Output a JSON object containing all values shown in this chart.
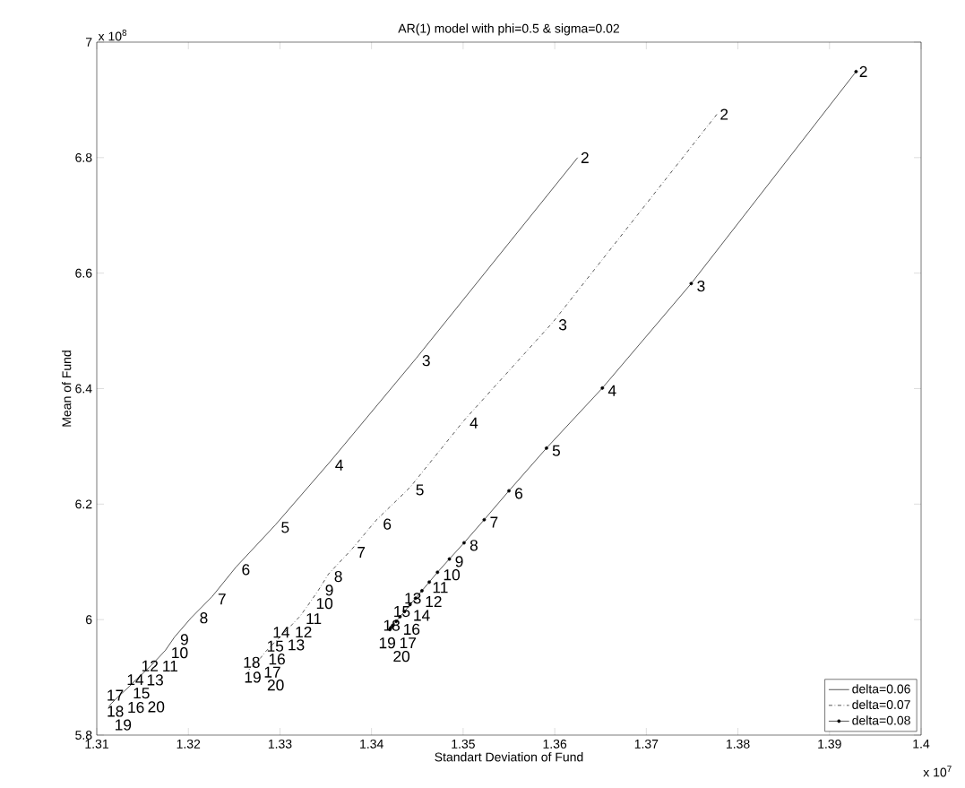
{
  "chart_data": {
    "type": "line",
    "title": "AR(1) model with phi=0.5 & sigma=0.02",
    "xlabel": "Standart Deviation of Fund",
    "ylabel": "Mean of Fund",
    "xlim": [
      1.31,
      1.4
    ],
    "xticks": [
      1.31,
      1.32,
      1.33,
      1.34,
      1.35,
      1.36,
      1.37,
      1.38,
      1.39,
      1.4
    ],
    "ylim": [
      5.8,
      7
    ],
    "yticks": [
      5.8,
      6,
      6.2,
      6.4,
      6.6,
      6.8,
      7
    ],
    "legend": "bottom right",
    "grid": false,
    "series": [
      {
        "name": "delta=0.06",
        "color": "#000000",
        "line_style": "solid",
        "marker": "none",
        "x": [
          1.3625,
          1.3449,
          1.3354,
          1.3295,
          1.3252,
          1.3226,
          1.3203,
          1.3185,
          1.3175,
          1.3168,
          1.3159,
          1.3151,
          1.3143,
          1.3136,
          1.313,
          1.3125,
          1.312,
          1.3116,
          1.3113
        ],
        "values": [
          6.8,
          6.453,
          6.272,
          6.164,
          6.091,
          6.04,
          6.003,
          5.97,
          5.947,
          5.935,
          5.92,
          5.908,
          5.896,
          5.885,
          5.876,
          5.869,
          5.861,
          5.855,
          5.849
        ]
      },
      {
        "name": "delta=0.07",
        "color": "#000000",
        "line_style": "dash-dot",
        "marker": "none",
        "x": [
          1.3777,
          1.3598,
          1.3501,
          1.3442,
          1.3405,
          1.3378,
          1.3353,
          1.3342,
          1.3332,
          1.3322,
          1.3313,
          1.3305,
          1.3297,
          1.329,
          1.3284,
          1.3279,
          1.3274,
          1.327,
          1.3266
        ],
        "values": [
          6.875,
          6.515,
          6.345,
          6.229,
          6.172,
          6.121,
          6.079,
          6.051,
          6.028,
          6.006,
          5.991,
          5.978,
          5.965,
          5.954,
          5.944,
          5.934,
          5.926,
          5.92,
          5.913
        ]
      },
      {
        "name": "delta=0.08",
        "color": "#000000",
        "line_style": "solid",
        "marker": "circle",
        "x": [
          1.3929,
          1.3749,
          1.3652,
          1.3591,
          1.355,
          1.3523,
          1.3501,
          1.3485,
          1.3472,
          1.3463,
          1.3455,
          1.3448,
          1.3442,
          1.3436,
          1.3431,
          1.3427,
          1.3423,
          1.3421,
          1.342
        ],
        "values": [
          6.949,
          6.582,
          6.401,
          6.297,
          6.223,
          6.173,
          6.133,
          6.105,
          6.082,
          6.065,
          6.05,
          6.037,
          6.026,
          6.014,
          6.005,
          5.997,
          5.99,
          5.986,
          5.983
        ]
      }
    ],
    "annotations": [
      "x 10$^{8}$",
      "x 10$^{7}$",
      {
        "text": "2",
        "x": 1.3625,
        "y": 6.8
      },
      {
        "text": "3",
        "x": 1.3449,
        "y": 6.453
      },
      {
        "text": "4",
        "x": 1.3354,
        "y": 6.272
      },
      {
        "text": "5",
        "x": 1.3295,
        "y": 6.164
      },
      {
        "text": "6",
        "x": 1.3252,
        "y": 6.091
      },
      {
        "text": "7",
        "x": 1.3226,
        "y": 6.04
      },
      {
        "text": "8",
        "x": 1.3203,
        "y": 6.003
      },
      {
        "text": "9",
        "x": 1.3185,
        "y": 5.97
      },
      {
        "text": "10",
        "x": 1.3175,
        "y": 5.947
      },
      {
        "text": "11",
        "x": 1.3168,
        "y": 5.935
      },
      {
        "text": "12",
        "x": 1.3159,
        "y": 5.92
      },
      {
        "text": "13",
        "x": 1.3151,
        "y": 5.908
      },
      {
        "text": "14",
        "x": 1.3143,
        "y": 5.896
      },
      {
        "text": "15",
        "x": 1.3136,
        "y": 5.885
      },
      {
        "text": "16",
        "x": 1.313,
        "y": 5.876
      },
      {
        "text": "17",
        "x": 1.3125,
        "y": 5.869
      },
      {
        "text": "18",
        "x": 1.312,
        "y": 5.861
      },
      {
        "text": "19",
        "x": 1.3116,
        "y": 5.855
      },
      {
        "text": "20",
        "x": 1.3113,
        "y": 5.849
      },
      {
        "text": "2",
        "x": 1.3777,
        "y": 6.875
      },
      {
        "text": "3",
        "x": 1.3598,
        "y": 6.515
      },
      {
        "text": "4",
        "x": 1.3501,
        "y": 6.345
      },
      {
        "text": "5",
        "x": 1.3442,
        "y": 6.229
      },
      {
        "text": "6",
        "x": 1.3405,
        "y": 6.172
      },
      {
        "text": "7",
        "x": 1.3378,
        "y": 6.121
      },
      {
        "text": "8",
        "x": 1.3353,
        "y": 6.079
      },
      {
        "text": "9",
        "x": 1.3342,
        "y": 6.051
      },
      {
        "text": "10",
        "x": 1.3332,
        "y": 6.028
      },
      {
        "text": "11",
        "x": 1.3322,
        "y": 6.006
      },
      {
        "text": "12",
        "x": 1.3313,
        "y": 5.991
      },
      {
        "text": "13",
        "x": 1.3305,
        "y": 5.978
      },
      {
        "text": "14",
        "x": 1.3297,
        "y": 5.965
      },
      {
        "text": "15",
        "x": 1.329,
        "y": 5.954
      },
      {
        "text": "16",
        "x": 1.3284,
        "y": 5.944
      },
      {
        "text": "17",
        "x": 1.3279,
        "y": 5.934
      },
      {
        "text": "18",
        "x": 1.3274,
        "y": 5.926
      },
      {
        "text": "19",
        "x": 1.327,
        "y": 5.92
      },
      {
        "text": "20",
        "x": 1.3266,
        "y": 5.913
      },
      {
        "text": "2",
        "x": 1.3929,
        "y": 6.949
      },
      {
        "text": "3",
        "x": 1.3749,
        "y": 6.582
      },
      {
        "text": "4",
        "x": 1.3652,
        "y": 6.401
      },
      {
        "text": "5",
        "x": 1.3591,
        "y": 6.297
      },
      {
        "text": "6",
        "x": 1.355,
        "y": 6.223
      },
      {
        "text": "7",
        "x": 1.3523,
        "y": 6.173
      },
      {
        "text": "8",
        "x": 1.3501,
        "y": 6.133
      },
      {
        "text": "9",
        "x": 1.3485,
        "y": 6.105
      },
      {
        "text": "10",
        "x": 1.3472,
        "y": 6.082
      },
      {
        "text": "11",
        "x": 1.3463,
        "y": 6.065
      },
      {
        "text": "12",
        "x": 1.3455,
        "y": 6.05
      },
      {
        "text": "13",
        "x": 1.3448,
        "y": 6.037
      },
      {
        "text": "14",
        "x": 1.3442,
        "y": 6.026
      },
      {
        "text": "15",
        "x": 1.3436,
        "y": 6.014
      },
      {
        "text": "16",
        "x": 1.3431,
        "y": 6.005
      },
      {
        "text": "17",
        "x": 1.3427,
        "y": 5.997
      },
      {
        "text": "18",
        "x": 1.3423,
        "y": 5.99
      },
      {
        "text": "19",
        "x": 1.3421,
        "y": 5.986
      },
      {
        "text": "20",
        "x": 1.342,
        "y": 5.983
      }
    ]
  }
}
